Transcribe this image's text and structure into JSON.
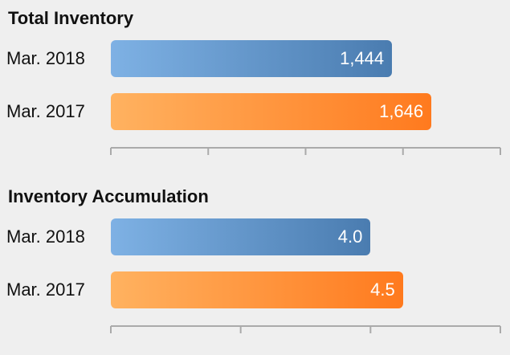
{
  "colors": {
    "series_2018": "#4a7cb0",
    "series_2017": "#ff7a1e",
    "axis": "#aaaaaa",
    "background": "#efefef"
  },
  "chart_data": [
    {
      "type": "bar",
      "orientation": "horizontal",
      "title": "Total Inventory",
      "categories": [
        "Mar. 2018",
        "Mar. 2017"
      ],
      "values": [
        1444,
        1646
      ],
      "value_labels": [
        "1,444",
        "1,646"
      ],
      "xlim": [
        0,
        2000
      ],
      "xticks": [
        0,
        500,
        1000,
        1500,
        2000
      ],
      "grid": false,
      "colors": [
        "#4a7cb0",
        "#ff7a1e"
      ]
    },
    {
      "type": "bar",
      "orientation": "horizontal",
      "title": "Inventory Accumulation",
      "categories": [
        "Mar. 2018",
        "Mar. 2017"
      ],
      "values": [
        4.0,
        4.5
      ],
      "value_labels": [
        "4.0",
        "4.5"
      ],
      "xlim": [
        0,
        6
      ],
      "xticks": [
        0,
        2,
        4,
        6
      ],
      "grid": false,
      "colors": [
        "#4a7cb0",
        "#ff7a1e"
      ]
    }
  ]
}
